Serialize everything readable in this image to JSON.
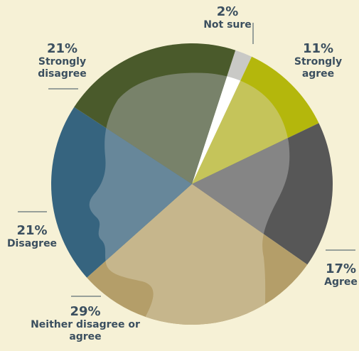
{
  "chart_data": {
    "type": "pie",
    "categories": [
      "Not sure",
      "Strongly agree",
      "Agree",
      "Neither disagree or agree",
      "Disagree",
      "Strongly disagree"
    ],
    "values": [
      2,
      11,
      17,
      29,
      21,
      21
    ],
    "value_labels": [
      "2%",
      "11%",
      "17%",
      "29%",
      "21%",
      "21%"
    ],
    "colors": [
      "#c9c9c6",
      "#b4b70c",
      "#575757",
      "#b49e69",
      "#36647f",
      "#4a5a2b"
    ],
    "inner_colors": [
      "#ffffff",
      "#c5c45a",
      "#858585",
      "#c6b68c",
      "#67879a",
      "#78826a"
    ]
  }
}
